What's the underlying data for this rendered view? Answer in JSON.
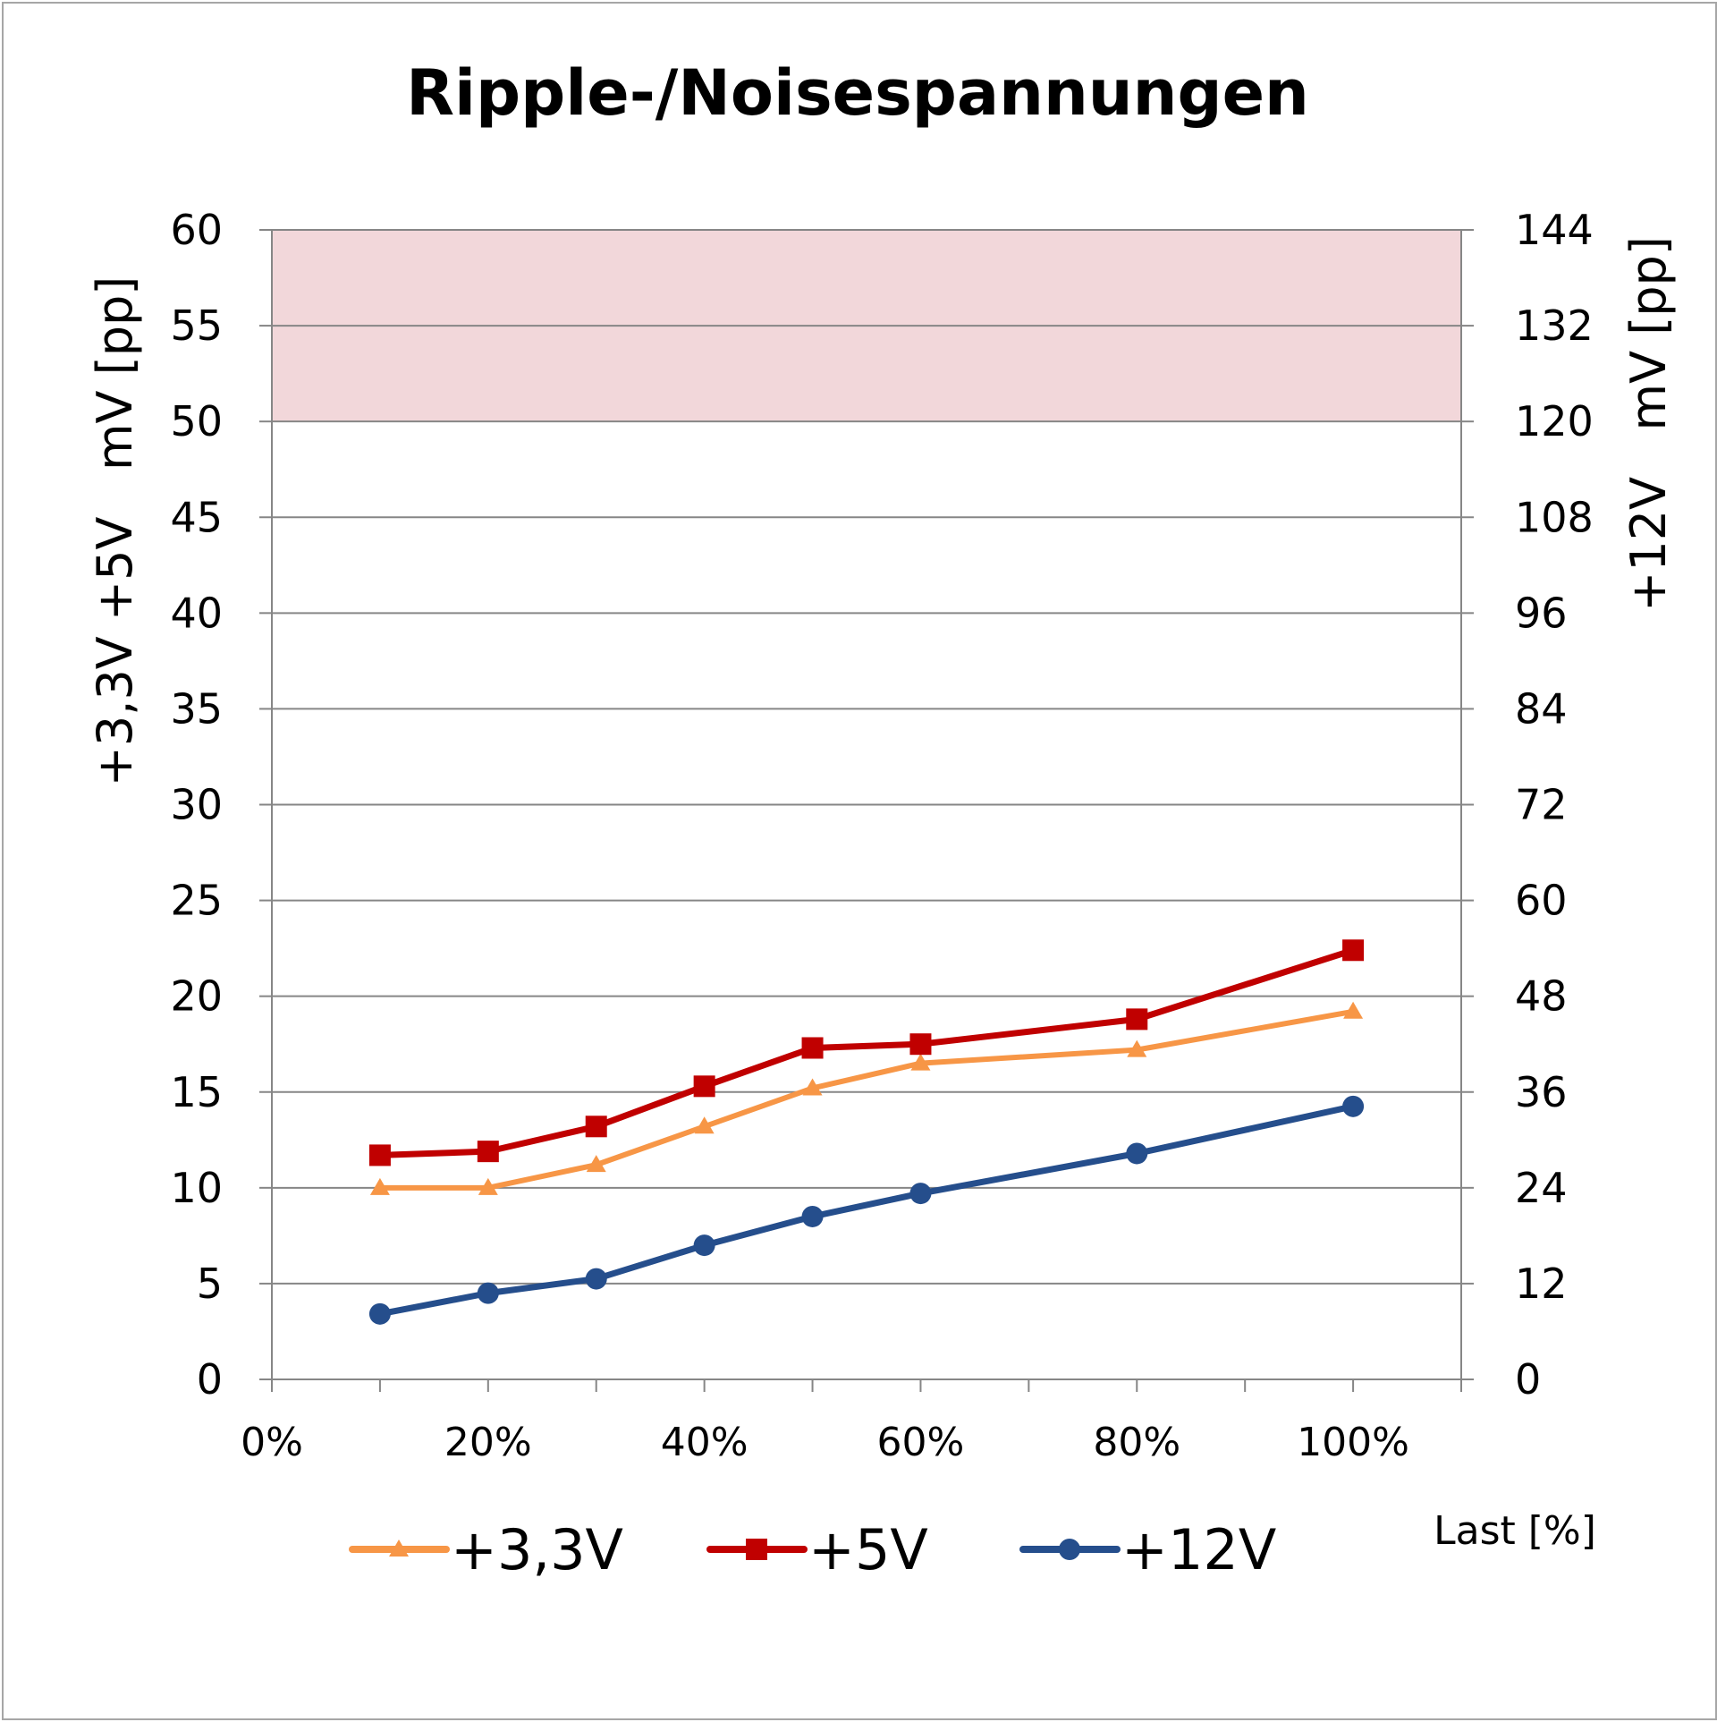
{
  "chart_data": {
    "type": "line",
    "title": "Ripple-/Noisespannungen",
    "xlabel": "Last [%]",
    "ylabel_left": "+3,3V +5V   mV [pp]",
    "ylabel_right": "+12V   mV [pp]",
    "xlim": [
      0,
      110
    ],
    "x_ticks": [
      0,
      20,
      40,
      60,
      80,
      100
    ],
    "x_tick_labels": [
      "0%",
      "20%",
      "40%",
      "60%",
      "80%",
      "100%"
    ],
    "ylim_left": [
      0,
      60
    ],
    "y_ticks_left": [
      0,
      5,
      10,
      15,
      20,
      25,
      30,
      35,
      40,
      45,
      50,
      55,
      60
    ],
    "ylim_right": [
      0,
      144
    ],
    "y_ticks_right": [
      0,
      12,
      24,
      36,
      48,
      60,
      72,
      84,
      96,
      108,
      120,
      132,
      144
    ],
    "limit_band_left": [
      50,
      60
    ],
    "limit_band_color": "#f2d7da",
    "grid": true,
    "legend_position": "bottom",
    "x": [
      10,
      20,
      30,
      40,
      50,
      60,
      80,
      100
    ],
    "series": [
      {
        "name": "+3,3V",
        "axis": "left",
        "color": "#f79646",
        "marker": "triangle",
        "values": [
          10.0,
          10.0,
          11.2,
          13.2,
          15.2,
          16.5,
          17.2,
          19.2
        ]
      },
      {
        "name": "+5V",
        "axis": "left",
        "color": "#c00000",
        "marker": "square",
        "values": [
          11.7,
          11.9,
          13.2,
          15.3,
          17.3,
          17.5,
          18.8,
          22.4
        ]
      },
      {
        "name": "+12V",
        "axis": "right",
        "color": "#254e8c",
        "marker": "circle",
        "values": [
          8.2,
          10.8,
          12.6,
          16.8,
          20.4,
          23.3,
          28.3,
          34.2
        ]
      }
    ]
  }
}
